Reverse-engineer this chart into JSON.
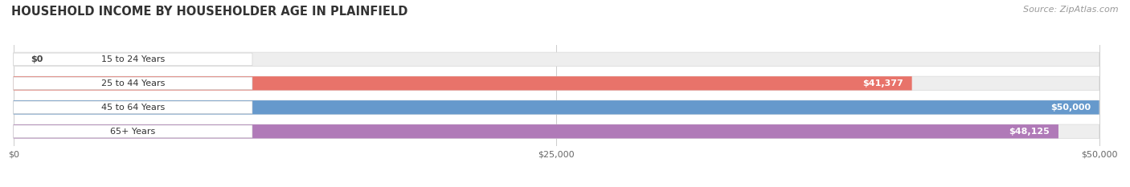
{
  "title": "HOUSEHOLD INCOME BY HOUSEHOLDER AGE IN PLAINFIELD",
  "source": "Source: ZipAtlas.com",
  "categories": [
    "15 to 24 Years",
    "25 to 44 Years",
    "45 to 64 Years",
    "65+ Years"
  ],
  "values": [
    0,
    41377,
    50000,
    48125
  ],
  "max_value": 50000,
  "bar_colors": [
    "#e8c49a",
    "#e8736a",
    "#6699cc",
    "#b07ab8"
  ],
  "label_values": [
    "$0",
    "$41,377",
    "$50,000",
    "$48,125"
  ],
  "x_ticks": [
    0,
    25000,
    50000
  ],
  "x_tick_labels": [
    "$0",
    "$25,000",
    "$50,000"
  ],
  "title_fontsize": 10.5,
  "source_fontsize": 8,
  "label_fontsize": 8,
  "tick_fontsize": 8,
  "category_fontsize": 8,
  "background_color": "#ffffff",
  "bar_bg_color": "#eeeeee",
  "bar_bg_edge_color": "#dddddd"
}
